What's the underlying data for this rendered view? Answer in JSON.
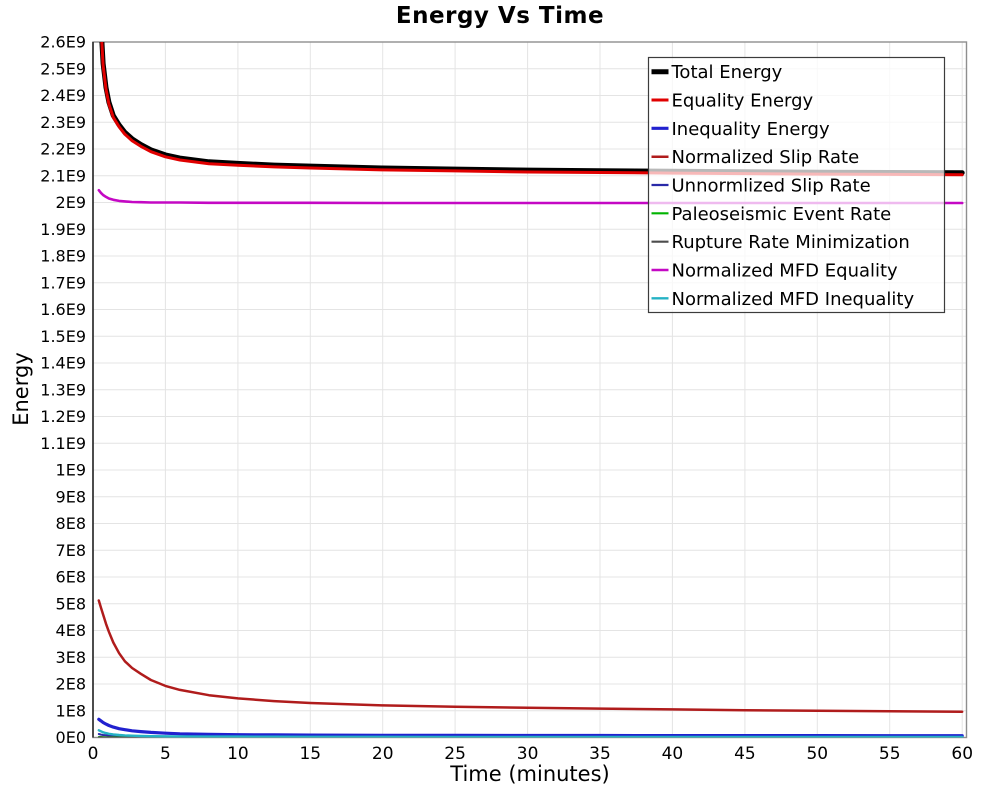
{
  "page": {
    "background": "#ffffff"
  },
  "chart_data": {
    "type": "line",
    "title": "Energy Vs Time",
    "xlabel": "Time (minutes)",
    "ylabel": "Energy",
    "xlim": [
      0,
      60.3
    ],
    "ylim": [
      0,
      2600000000.0
    ],
    "grid": true,
    "grid_color": "#e4e4e4",
    "frame_color": "#8e8e8e",
    "axis_color": "#2a2a2a",
    "legend_position": "upper right",
    "legend_border_color": "#3c3c3c",
    "legend_background": "rgba(255,255,255,0.72)",
    "x_ticks": {
      "values": [
        0,
        5,
        10,
        15,
        20,
        25,
        30,
        35,
        40,
        45,
        50,
        55,
        60
      ],
      "labels": [
        "0",
        "5",
        "10",
        "15",
        "20",
        "25",
        "30",
        "35",
        "40",
        "45",
        "50",
        "55",
        "60"
      ]
    },
    "y_ticks": {
      "values": [
        0,
        100000000.0,
        200000000.0,
        300000000.0,
        400000000.0,
        500000000.0,
        600000000.0,
        700000000.0,
        800000000.0,
        900000000.0,
        1000000000.0,
        1100000000.0,
        1200000000.0,
        1300000000.0,
        1400000000.0,
        1500000000.0,
        1600000000.0,
        1700000000.0,
        1800000000.0,
        1900000000.0,
        2000000000.0,
        2100000000.0,
        2200000000.0,
        2300000000.0,
        2400000000.0,
        2500000000.0,
        2600000000.0
      ],
      "labels": [
        "0E0",
        "1E8",
        "2E8",
        "3E8",
        "4E8",
        "5E8",
        "6E8",
        "7E8",
        "8E8",
        "9E8",
        "1E9",
        "1.1E9",
        "1.2E9",
        "1.3E9",
        "1.4E9",
        "1.5E9",
        "1.6E9",
        "1.7E9",
        "1.8E9",
        "1.9E9",
        "2E9",
        "2.1E9",
        "2.2E9",
        "2.3E9",
        "2.4E9",
        "2.5E9",
        "2.6E9"
      ]
    },
    "x": [
      0.4,
      0.55,
      0.7,
      0.9,
      1.1,
      1.4,
      1.8,
      2.2,
      2.7,
      3.3,
      4,
      5,
      6,
      8,
      10,
      12.5,
      15,
      20,
      25,
      30,
      35,
      40,
      45,
      50,
      55,
      60
    ],
    "series": [
      {
        "name": "Total Energy",
        "color": "#000000",
        "width": 5,
        "values": [
          3050000000.0,
          2660000000.0,
          2520000000.0,
          2430000000.0,
          2375000000.0,
          2325000000.0,
          2290000000.0,
          2262000000.0,
          2238000000.0,
          2217000000.0,
          2197000000.0,
          2178000000.0,
          2166000000.0,
          2152000000.0,
          2146000000.0,
          2140000000.0,
          2136000000.0,
          2129000000.0,
          2125000000.0,
          2121000000.0,
          2119000000.0,
          2117000000.0,
          2115000000.0,
          2113000000.0,
          2112000000.0,
          2111000000.0
        ]
      },
      {
        "name": "Equality Energy",
        "color": "#e00000",
        "width": 3,
        "values": [
          3043000000.0,
          2653000000.0,
          2513000000.0,
          2423000000.0,
          2368000000.0,
          2318000000.0,
          2283000000.0,
          2255000000.0,
          2231000000.0,
          2210000000.0,
          2190000000.0,
          2171000000.0,
          2159000000.0,
          2145000000.0,
          2139000000.0,
          2133000000.0,
          2129000000.0,
          2122000000.0,
          2118000000.0,
          2114000000.0,
          2112000000.0,
          2110000000.0,
          2108000000.0,
          2106000000.0,
          2105000000.0,
          2104000000.0
        ]
      },
      {
        "name": "Inequality Energy",
        "color": "#2121cf",
        "width": 3.2,
        "values": [
          68000000.0,
          62000000.0,
          56000000.0,
          50000000.0,
          45000000.0,
          39000000.0,
          33000000.0,
          29000000.0,
          25000000.0,
          22000000.0,
          19000000.0,
          16000000.0,
          14000000.0,
          12000000.0,
          10500000.0,
          9600000.0,
          9000000.0,
          8300000.0,
          7900000.0,
          7600000.0,
          7400000.0,
          7200000.0,
          7100000.0,
          7000000.0,
          6900000.0,
          6800000.0
        ]
      },
      {
        "name": "Normalized Slip Rate",
        "color": "#b01c1c",
        "width": 2.5,
        "values": [
          512000000.0,
          485000000.0,
          460000000.0,
          425000000.0,
          395000000.0,
          355000000.0,
          315000000.0,
          285000000.0,
          260000000.0,
          238000000.0,
          215000000.0,
          193000000.0,
          178000000.0,
          158000000.0,
          146000000.0,
          136000000.0,
          129000000.0,
          120000000.0,
          115000000.0,
          111000000.0,
          108000000.0,
          105000000.0,
          102000000.0,
          100000000.0,
          98000000.0,
          96000000.0
        ]
      },
      {
        "name": "Unnormlized Slip Rate",
        "color": "#2a2aa8",
        "width": 2,
        "values": [
          13000000.0,
          11000000.0,
          9500000.0,
          8200000.0,
          7200000.0,
          6200000.0,
          5200000.0,
          4500000.0,
          4000000.0,
          3500000.0,
          3100000.0,
          2700000.0,
          2500000.0,
          2200000.0,
          2000000.0,
          1900000.0,
          1800000.0,
          1600000.0,
          1500000.0,
          1500000.0,
          1400000.0,
          1400000.0,
          1300000.0,
          1300000.0,
          1300000.0,
          1300000.0
        ]
      },
      {
        "name": "Paleoseismic Event Rate",
        "color": "#00b400",
        "width": 2,
        "values": [
          2000000.0,
          1700000.0,
          1500000.0,
          1300000.0,
          1200000.0,
          1000000.0,
          900000.0,
          900000.0,
          800000.0,
          800000.0,
          800000.0,
          700000.0,
          700000.0,
          700000.0,
          600000.0,
          600000.0,
          600000.0,
          600000.0,
          600000.0,
          500000.0,
          500000.0,
          500000.0,
          500000.0,
          500000.0,
          500000.0,
          500000.0
        ]
      },
      {
        "name": "Rupture Rate Minimization",
        "color": "#4d4d4d",
        "width": 1.6,
        "values": [
          1000000.0,
          900000.0,
          800000.0,
          700000.0,
          600000.0,
          500000.0,
          500000.0,
          400000.0,
          400000.0,
          400000.0,
          400000.0,
          300000.0,
          300000.0,
          300000.0,
          300000.0,
          300000.0,
          300000.0,
          300000.0,
          300000.0,
          300000.0,
          300000.0,
          300000.0,
          300000.0,
          300000.0,
          300000.0,
          300000.0
        ]
      },
      {
        "name": "Normalized MFD Equality",
        "color": "#c408c4",
        "width": 2.6,
        "values": [
          2046000000.0,
          2036000000.0,
          2028000000.0,
          2021000000.0,
          2015000000.0,
          2010000000.0,
          2006000000.0,
          2004000000.0,
          2002000000.0,
          2001000000.0,
          2000000000.0,
          2000000000.0,
          2000000000.0,
          1999000000.0,
          1999000000.0,
          1999000000.0,
          1999000000.0,
          1998000000.0,
          1998000000.0,
          1998000000.0,
          1998000000.0,
          1998000000.0,
          1998000000.0,
          1998000000.0,
          1998000000.0,
          1998000000.0
        ]
      },
      {
        "name": "Normalized MFD Inequality",
        "color": "#25b2c4",
        "width": 2.4,
        "values": [
          27000000.0,
          23000000.0,
          19500000.0,
          16500000.0,
          14000000.0,
          11500000.0,
          9200000.0,
          7800000.0,
          6600000.0,
          5700000.0,
          5000000.0,
          4400000.0,
          4000000.0,
          3500000.0,
          3200000.0,
          3000000.0,
          2800000.0,
          2600000.0,
          2400000.0,
          2300000.0,
          2200000.0,
          2100000.0,
          2100000.0,
          2000000.0,
          2000000.0,
          2000000.0
        ]
      }
    ]
  }
}
